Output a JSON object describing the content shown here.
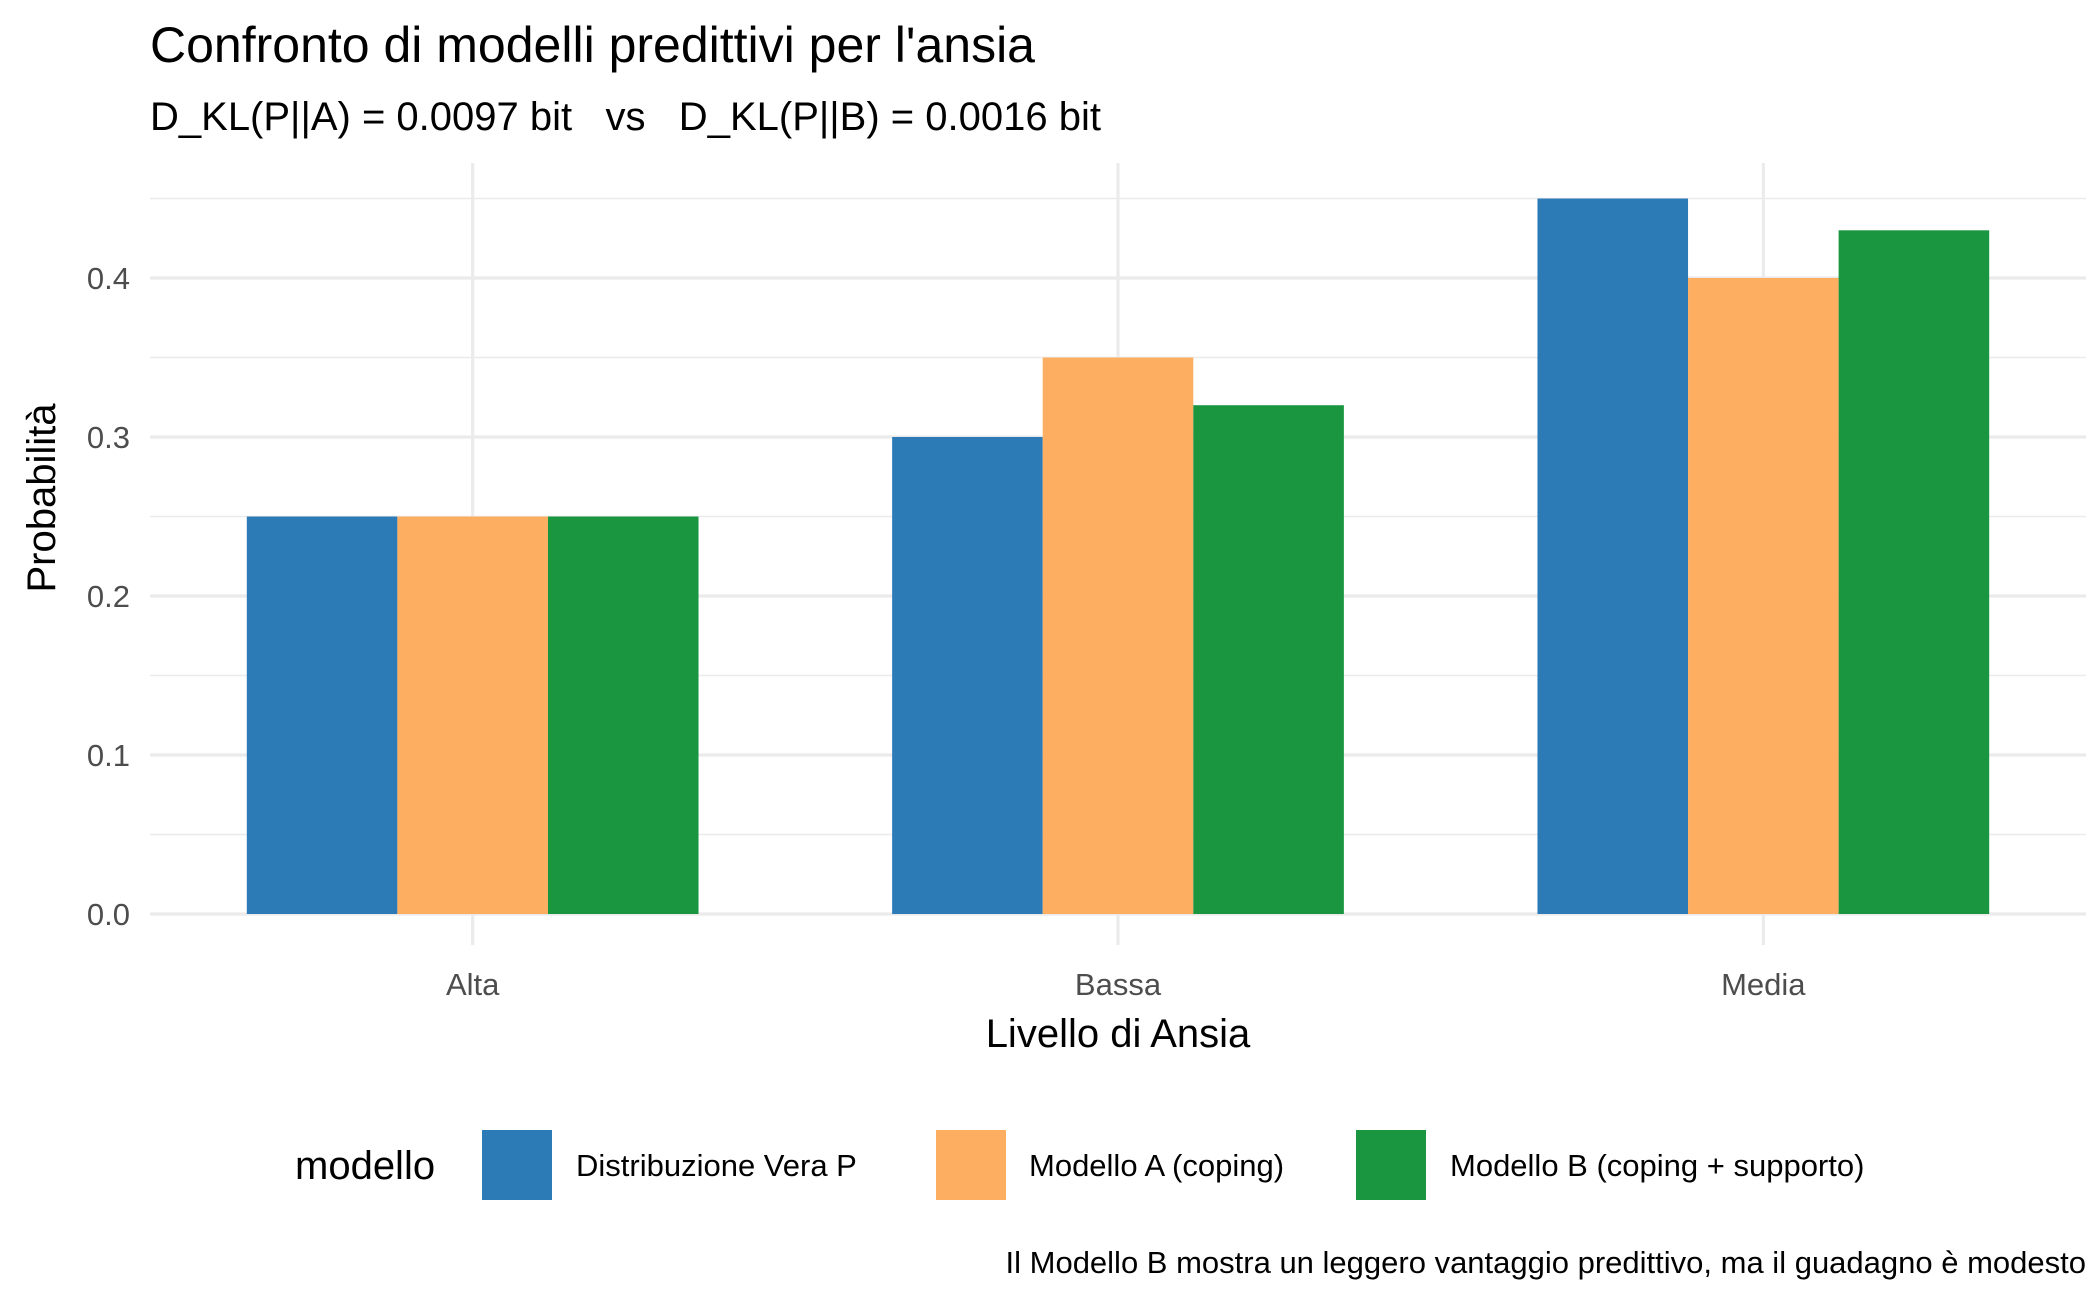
{
  "chart_data": {
    "type": "bar",
    "title": "Confronto di modelli predittivi per l'ansia",
    "subtitle": "D_KL(P||A) = 0.0097 bit   vs   D_KL(P||B) = 0.0016 bit",
    "xlabel": "Livello di Ansia",
    "ylabel": "Probabilità",
    "caption": "Il Modello B mostra un leggero vantaggio predittivo, ma il guadagno è modesto",
    "categories": [
      "Alta",
      "Bassa",
      "Media"
    ],
    "ylim": [
      0,
      0.45
    ],
    "yticks": [
      0.0,
      0.1,
      0.2,
      0.3,
      0.4
    ],
    "ytick_labels": [
      "0.0",
      "0.1",
      "0.2",
      "0.3",
      "0.4"
    ],
    "grid": true,
    "legend": {
      "title": "modello",
      "position": "bottom"
    },
    "series": [
      {
        "name": "Distribuzione Vera P",
        "color": "#2C7BB6",
        "values": [
          0.25,
          0.3,
          0.45
        ]
      },
      {
        "name": "Modello A (coping)",
        "color": "#FDAE61",
        "values": [
          0.25,
          0.35,
          0.4
        ]
      },
      {
        "name": "Modello B (coping + supporto)",
        "color": "#1A9641",
        "values": [
          0.25,
          0.32,
          0.43
        ]
      }
    ]
  }
}
